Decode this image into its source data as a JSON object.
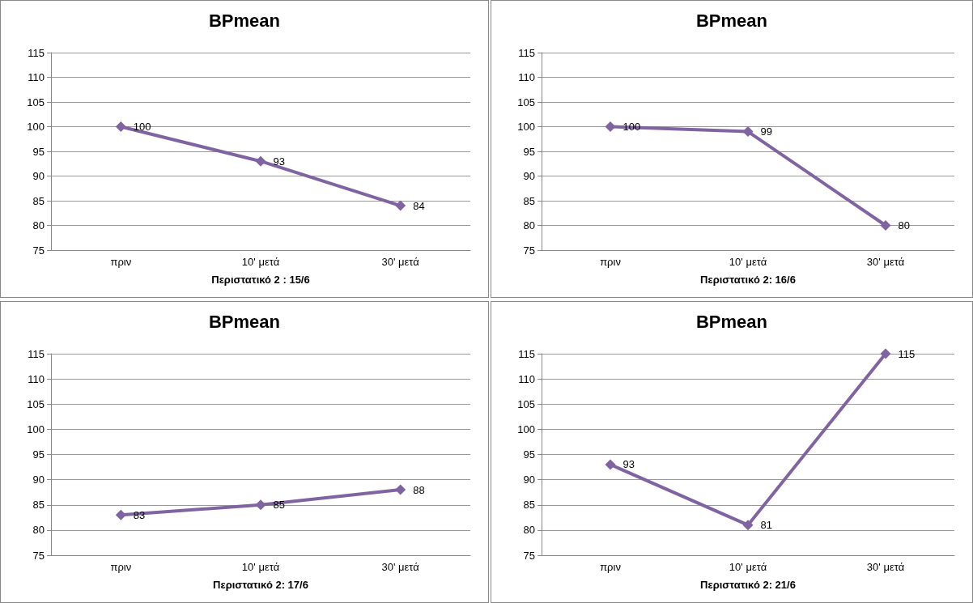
{
  "chart_data": [
    {
      "type": "line",
      "title": "BPmean",
      "xlabel": "Περιστατικό 2 : 15/6",
      "categories": [
        "πριν",
        "10' μετά",
        "30' μετά"
      ],
      "series": [
        {
          "color": "#8064a2",
          "values": [
            100,
            93,
            84
          ]
        }
      ],
      "ylim": [
        75,
        115
      ],
      "yticks": [
        75,
        80,
        85,
        90,
        95,
        100,
        105,
        110,
        115
      ],
      "grid": "y",
      "marker": "diamond",
      "line_style": "solid",
      "data_labels": true
    },
    {
      "type": "line",
      "title": "BPmean",
      "xlabel": "Περιστατικό 2: 16/6",
      "categories": [
        "πριν",
        "10' μετά",
        "30' μετά"
      ],
      "series": [
        {
          "color": "#8064a2",
          "values": [
            100,
            99,
            80
          ]
        }
      ],
      "ylim": [
        75,
        115
      ],
      "yticks": [
        75,
        80,
        85,
        90,
        95,
        100,
        105,
        110,
        115
      ],
      "grid": "y",
      "marker": "diamond",
      "line_style": "solid",
      "data_labels": true
    },
    {
      "type": "line",
      "title": "BPmean",
      "xlabel": "Περιστατικό 2: 17/6",
      "categories": [
        "πριν",
        "10' μετά",
        "30' μετά"
      ],
      "series": [
        {
          "color": "#8064a2",
          "values": [
            83,
            85,
            88
          ]
        }
      ],
      "ylim": [
        75,
        115
      ],
      "yticks": [
        75,
        80,
        85,
        90,
        95,
        100,
        105,
        110,
        115
      ],
      "grid": "y",
      "marker": "diamond",
      "line_style": "solid",
      "data_labels": true
    },
    {
      "type": "line",
      "title": "BPmean",
      "xlabel": "Περιστατικό 2: 21/6",
      "categories": [
        "πριν",
        "10' μετά",
        "30' μετά"
      ],
      "series": [
        {
          "color": "#8064a2",
          "values": [
            93,
            81,
            115
          ]
        }
      ],
      "ylim": [
        75,
        115
      ],
      "yticks": [
        75,
        80,
        85,
        90,
        95,
        100,
        105,
        110,
        115
      ],
      "grid": "y",
      "marker": "diamond",
      "line_style": "solid",
      "data_labels": true
    }
  ]
}
